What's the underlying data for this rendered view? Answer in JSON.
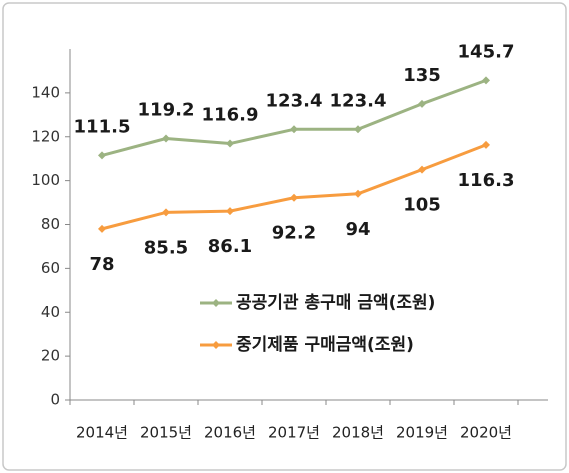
{
  "chart_data": {
    "type": "line",
    "categories": [
      "2014년",
      "2015년",
      "2016년",
      "2017년",
      "2018년",
      "2019년",
      "2020년"
    ],
    "series": [
      {
        "name": "공공기관 총구매 금액(조원)",
        "color": "#9cb382",
        "values": [
          111.5,
          119.2,
          116.9,
          123.4,
          123.4,
          135,
          145.7
        ]
      },
      {
        "name": "중기제품 구매금액(조원)",
        "color": "#f79c3f",
        "values": [
          78,
          85.5,
          86.1,
          92.2,
          94,
          105,
          116.3
        ]
      }
    ],
    "ylim": [
      0,
      160
    ],
    "yticks": [
      0,
      20,
      40,
      60,
      80,
      100,
      120,
      140
    ],
    "grid": false,
    "legend": "lower right"
  }
}
